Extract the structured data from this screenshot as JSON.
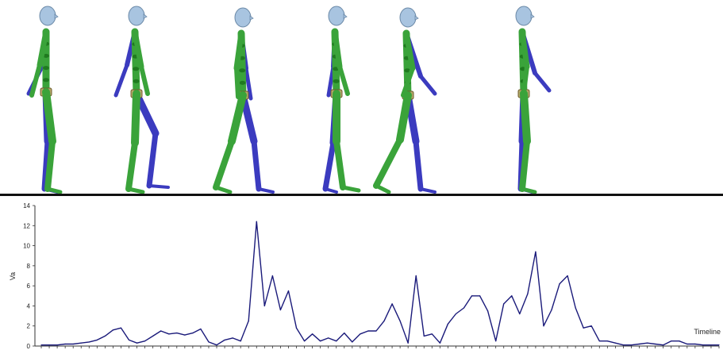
{
  "colors": {
    "body": "#3aa33a",
    "body_dark": "#1f7a1f",
    "limb_far": "#3b3bbf",
    "head": "#a8c4e0",
    "pelvis": "#b8a76a",
    "ground": "#111111",
    "line": "#1a1a7a"
  },
  "skeletons": {
    "icon": "walking-skeleton-icon",
    "poses": [
      {
        "name": "stand"
      },
      {
        "name": "back-leg-lift"
      },
      {
        "name": "stride-wide"
      },
      {
        "name": "heel-strike"
      },
      {
        "name": "stride-long"
      },
      {
        "name": "stand-arm-forward"
      }
    ]
  },
  "chart_data": {
    "type": "line",
    "xlabel": "Timeline",
    "ylabel": "Va",
    "ylim": [
      0,
      14
    ],
    "yticks": [
      0,
      2,
      4,
      6,
      8,
      10,
      12,
      14
    ],
    "ytick_labels": [
      "0",
      "2",
      "4",
      "6",
      "8",
      "10",
      "12",
      "14"
    ],
    "x_count": 86,
    "grid": false,
    "series": [
      {
        "values": [
          0.1,
          0.1,
          0.1,
          0.2,
          0.2,
          0.3,
          0.4,
          0.6,
          1.0,
          1.6,
          1.8,
          0.6,
          0.3,
          0.5,
          1.0,
          1.5,
          1.2,
          1.3,
          1.1,
          1.3,
          1.7,
          0.4,
          0.1,
          0.6,
          0.8,
          0.5,
          2.5,
          12.4,
          4.0,
          7.0,
          3.6,
          5.5,
          1.8,
          0.5,
          1.2,
          0.5,
          0.8,
          0.5,
          1.3,
          0.4,
          1.2,
          1.5,
          1.5,
          2.5,
          4.2,
          2.5,
          0.3,
          7.0,
          1.0,
          1.2,
          0.3,
          2.2,
          3.2,
          3.8,
          5.0,
          5.0,
          3.5,
          0.5,
          4.2,
          5.0,
          3.2,
          5.2,
          9.4,
          2.0,
          3.6,
          6.2,
          7.0,
          3.8,
          1.8,
          2.0,
          0.5,
          0.5,
          0.3,
          0.1,
          0.1,
          0.2,
          0.3,
          0.2,
          0.1,
          0.5,
          0.5,
          0.2,
          0.2,
          0.1,
          0.1,
          0.1
        ]
      }
    ]
  }
}
